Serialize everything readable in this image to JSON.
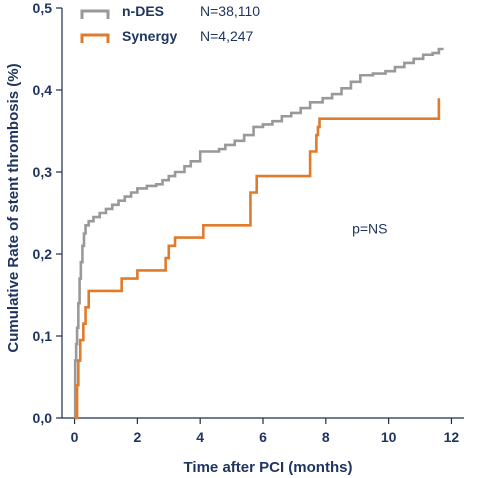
{
  "chart_data": {
    "type": "line",
    "step": true,
    "xlabel": "Time after PCI (months)",
    "ylabel": "Cumulative Rate of stent thrombosis (%)",
    "xlim": [
      -0.4,
      12.4
    ],
    "ylim": [
      0,
      0.5
    ],
    "xticks": [
      0,
      2,
      4,
      6,
      8,
      10,
      12
    ],
    "xtick_labels": [
      "0",
      "2",
      "4",
      "6",
      "8",
      "10",
      "12"
    ],
    "yticks": [
      0,
      0.1,
      0.2,
      0.3,
      0.4,
      0.5
    ],
    "ytick_labels": [
      "0,0",
      "0,1",
      "0,2",
      "0,3",
      "0,4",
      "0,5"
    ],
    "grid": false,
    "legend_position": "top-left",
    "annotations": [
      {
        "text": "p=NS",
        "x": 9.4,
        "y": 0.225
      }
    ],
    "series": [
      {
        "name": "n-DES",
        "n_label": "N=38,110",
        "color": "#999999",
        "points": [
          [
            0,
            0.0
          ],
          [
            0.02,
            0.07
          ],
          [
            0.05,
            0.09
          ],
          [
            0.08,
            0.11
          ],
          [
            0.12,
            0.14
          ],
          [
            0.16,
            0.17
          ],
          [
            0.2,
            0.19
          ],
          [
            0.25,
            0.21
          ],
          [
            0.3,
            0.225
          ],
          [
            0.35,
            0.235
          ],
          [
            0.45,
            0.24
          ],
          [
            0.6,
            0.245
          ],
          [
            0.8,
            0.25
          ],
          [
            1.0,
            0.255
          ],
          [
            1.2,
            0.26
          ],
          [
            1.4,
            0.265
          ],
          [
            1.6,
            0.27
          ],
          [
            1.8,
            0.275
          ],
          [
            2.0,
            0.28
          ],
          [
            2.3,
            0.283
          ],
          [
            2.6,
            0.285
          ],
          [
            2.8,
            0.29
          ],
          [
            3.0,
            0.295
          ],
          [
            3.2,
            0.3
          ],
          [
            3.5,
            0.307
          ],
          [
            3.7,
            0.313
          ],
          [
            4.0,
            0.325
          ],
          [
            4.6,
            0.328
          ],
          [
            4.8,
            0.333
          ],
          [
            5.1,
            0.338
          ],
          [
            5.4,
            0.345
          ],
          [
            5.7,
            0.355
          ],
          [
            6.0,
            0.358
          ],
          [
            6.3,
            0.362
          ],
          [
            6.6,
            0.368
          ],
          [
            6.9,
            0.372
          ],
          [
            7.2,
            0.378
          ],
          [
            7.5,
            0.385
          ],
          [
            7.9,
            0.39
          ],
          [
            8.2,
            0.395
          ],
          [
            8.5,
            0.402
          ],
          [
            8.8,
            0.41
          ],
          [
            9.1,
            0.418
          ],
          [
            9.5,
            0.42
          ],
          [
            9.9,
            0.423
          ],
          [
            10.2,
            0.428
          ],
          [
            10.5,
            0.433
          ],
          [
            10.8,
            0.438
          ],
          [
            11.1,
            0.443
          ],
          [
            11.4,
            0.445
          ],
          [
            11.6,
            0.45
          ],
          [
            11.75,
            0.45
          ]
        ]
      },
      {
        "name": "Synergy",
        "n_label": "N=4,247",
        "color": "#e07b2c",
        "points": [
          [
            0,
            0.0
          ],
          [
            0.08,
            0.04
          ],
          [
            0.12,
            0.07
          ],
          [
            0.18,
            0.095
          ],
          [
            0.28,
            0.115
          ],
          [
            0.35,
            0.135
          ],
          [
            0.45,
            0.155
          ],
          [
            1.5,
            0.17
          ],
          [
            2.0,
            0.18
          ],
          [
            2.9,
            0.195
          ],
          [
            3.0,
            0.21
          ],
          [
            3.2,
            0.22
          ],
          [
            4.1,
            0.235
          ],
          [
            5.6,
            0.275
          ],
          [
            5.8,
            0.295
          ],
          [
            7.5,
            0.325
          ],
          [
            7.7,
            0.345
          ],
          [
            7.75,
            0.355
          ],
          [
            7.8,
            0.365
          ],
          [
            11.6,
            0.39
          ]
        ]
      }
    ]
  }
}
